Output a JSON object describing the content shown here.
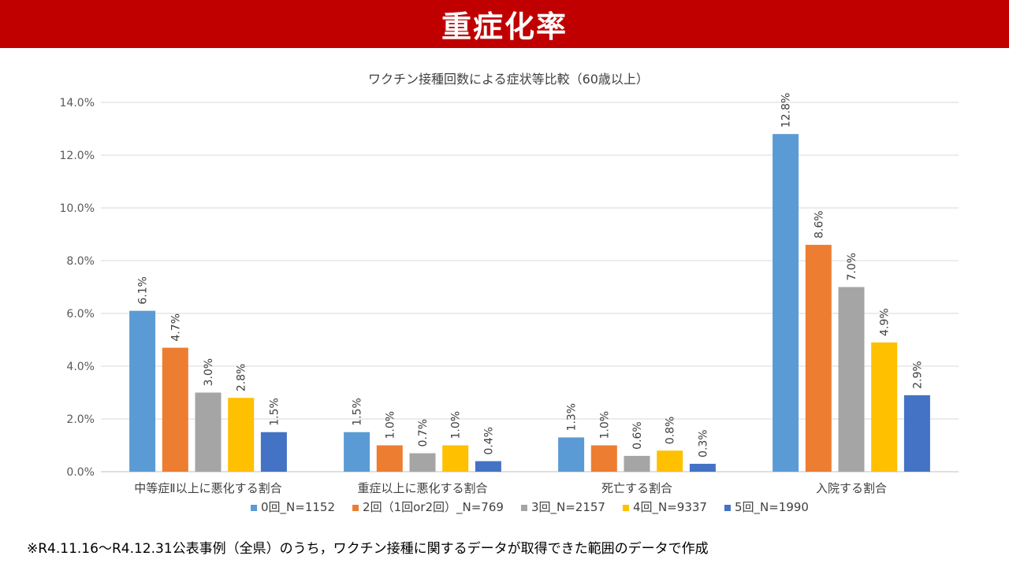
{
  "header": {
    "title": "重症化率"
  },
  "footnote": "※R4.11.16～R4.12.31公表事例（全県）のうち，ワクチン接種に関するデータが取得できた範囲のデータで作成",
  "chart_data": {
    "type": "bar",
    "title": "ワクチン接種回数による症状等比較（60歳以上）",
    "categories": [
      "中等症Ⅱ以上に悪化する割合",
      "重症以上に悪化する割合",
      "死亡する割合",
      "入院する割合"
    ],
    "series": [
      {
        "name": "0回_N=1152",
        "color": "#5b9bd5",
        "values": [
          6.1,
          1.5,
          1.3,
          12.8
        ],
        "labels": [
          "6.1%",
          "1.5%",
          "1.3%",
          "12.8%"
        ]
      },
      {
        "name": "2回（1回or2回）_N=769",
        "color": "#ed7d31",
        "values": [
          4.7,
          1.0,
          1.0,
          8.6
        ],
        "labels": [
          "4.7%",
          "1.0%",
          "1.0%",
          "8.6%"
        ]
      },
      {
        "name": "3回_N=2157",
        "color": "#a5a5a5",
        "values": [
          3.0,
          0.7,
          0.6,
          7.0
        ],
        "labels": [
          "3.0%",
          "0.7%",
          "0.6%",
          "7.0%"
        ]
      },
      {
        "name": "4回_N=9337",
        "color": "#ffc000",
        "values": [
          2.8,
          1.0,
          0.8,
          4.9
        ],
        "labels": [
          "2.8%",
          "1.0%",
          "0.8%",
          "4.9%"
        ]
      },
      {
        "name": "5回_N=1990",
        "color": "#4472c4",
        "values": [
          1.5,
          0.4,
          0.3,
          2.9
        ],
        "labels": [
          "1.5%",
          "0.4%",
          "0.3%",
          "2.9%"
        ]
      }
    ],
    "ylim": [
      0,
      14
    ],
    "yticks": [
      0,
      2,
      4,
      6,
      8,
      10,
      12,
      14
    ],
    "ytick_labels": [
      "0.0%",
      "2.0%",
      "4.0%",
      "6.0%",
      "8.0%",
      "10.0%",
      "12.0%",
      "14.0%"
    ],
    "grid": true,
    "legend_position": "bottom",
    "xlabel": "",
    "ylabel": ""
  }
}
